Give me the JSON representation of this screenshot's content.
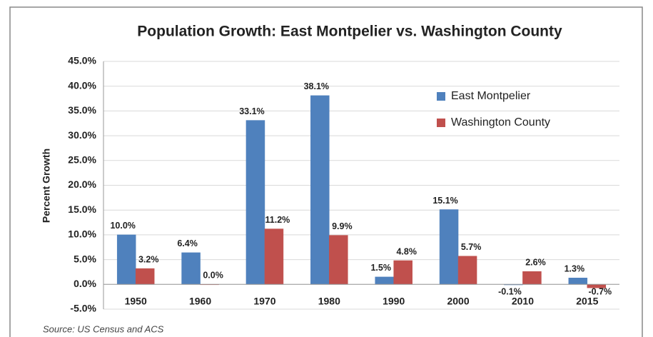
{
  "chart_data": {
    "type": "bar",
    "title": "Population Growth:  East Montpelier vs. Washington County",
    "y_label": "Percent Growth",
    "source": "Source:  US Census and ACS",
    "categories": [
      "1950",
      "1960",
      "1970",
      "1980",
      "1990",
      "2000",
      "2010",
      "2015"
    ],
    "series": [
      {
        "name": "East Montpelier",
        "color": "#4f81bd",
        "values": [
          10.0,
          6.4,
          33.1,
          38.1,
          1.5,
          15.1,
          -0.1,
          1.3
        ],
        "value_labels": [
          "10.0%",
          "6.4%",
          "33.1%",
          "38.1%",
          "1.5%",
          "15.1%",
          "-0.1%",
          "1.3%"
        ]
      },
      {
        "name": "Washington County",
        "color": "#c0504d",
        "values": [
          3.2,
          0.0,
          11.2,
          9.9,
          4.8,
          5.7,
          2.6,
          -0.7
        ],
        "value_labels": [
          "3.2%",
          "0.0%",
          "11.2%",
          "9.9%",
          "4.8%",
          "5.7%",
          "2.6%",
          "-0.7%"
        ]
      }
    ],
    "ylim": [
      -5,
      45
    ],
    "yticks": [
      {
        "value": -5,
        "label": "-5.0%"
      },
      {
        "value": 0,
        "label": "0.0%"
      },
      {
        "value": 5,
        "label": "5.0%"
      },
      {
        "value": 10,
        "label": "10.0%"
      },
      {
        "value": 15,
        "label": "15.0%"
      },
      {
        "value": 20,
        "label": "20.0%"
      },
      {
        "value": 25,
        "label": "25.0%"
      },
      {
        "value": 30,
        "label": "30.0%"
      },
      {
        "value": 35,
        "label": "35.0%"
      },
      {
        "value": 40,
        "label": "40.0%"
      },
      {
        "value": 45,
        "label": "45.0%"
      }
    ],
    "grid": true,
    "legend": "upper right"
  }
}
